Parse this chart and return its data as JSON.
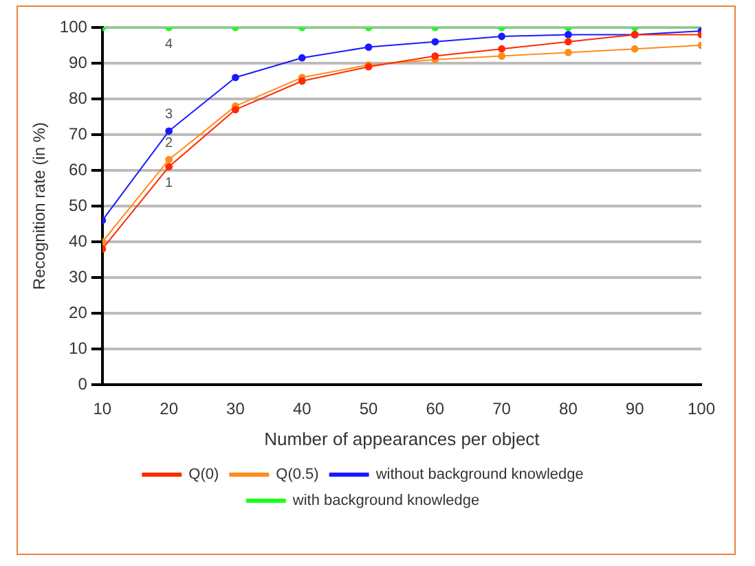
{
  "chart_data": {
    "type": "line",
    "xlabel": "Number of appearances per object",
    "ylabel": "Recognition rate (in %)",
    "x": [
      10,
      20,
      30,
      40,
      50,
      60,
      70,
      80,
      90,
      100
    ],
    "series": [
      {
        "name": "Q(0)",
        "color": "#ff2a00",
        "values": [
          38,
          61,
          77,
          85,
          89,
          92,
          94,
          96,
          98,
          98
        ]
      },
      {
        "name": "Q(0.5)",
        "color": "#ff8c1a",
        "values": [
          40,
          63,
          78,
          86,
          89.5,
          91,
          92,
          93,
          94,
          95
        ]
      },
      {
        "name": "without background knowledge",
        "color": "#1a1aff",
        "values": [
          46,
          71,
          86,
          91.5,
          94.5,
          96,
          97.5,
          98,
          98,
          99
        ]
      },
      {
        "name": "with background knowledge",
        "color": "#1aff1a",
        "values": [
          100,
          100,
          100,
          100,
          100,
          100,
          100,
          100,
          100,
          100
        ]
      }
    ],
    "xlim": [
      10,
      100
    ],
    "xticks": [
      10,
      20,
      30,
      40,
      50,
      60,
      70,
      80,
      90,
      100
    ],
    "ylim": [
      0,
      100
    ],
    "yticks": [
      0,
      10,
      20,
      30,
      40,
      50,
      60,
      70,
      80,
      90,
      100
    ],
    "grid": "y",
    "legend": "bottom",
    "marker": "circle",
    "line_style": "solid",
    "annotations": [
      "1",
      "2",
      "3",
      "4"
    ]
  }
}
